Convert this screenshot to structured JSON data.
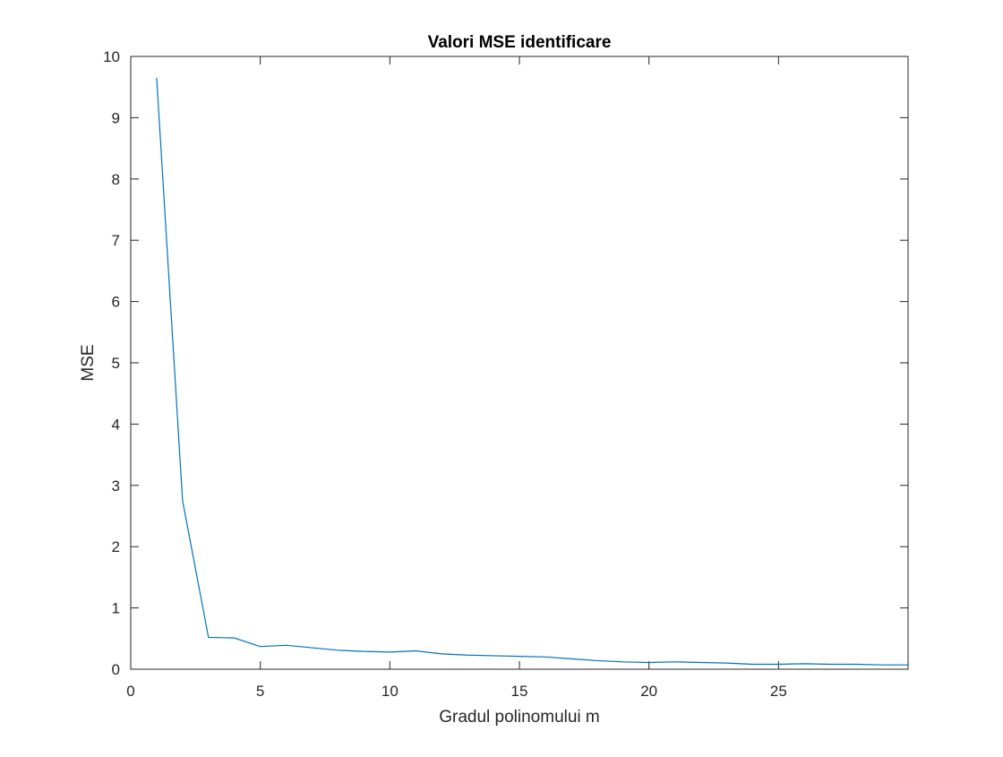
{
  "chart_data": {
    "type": "line",
    "title": "Valori MSE identificare",
    "xlabel": "Gradul polinomului m",
    "ylabel": "MSE",
    "xlim": [
      0,
      30
    ],
    "ylim": [
      0,
      10
    ],
    "xticks": [
      0,
      5,
      10,
      15,
      20,
      25
    ],
    "yticks": [
      0,
      1,
      2,
      3,
      4,
      5,
      6,
      7,
      8,
      9,
      10
    ],
    "grid": false,
    "box": true,
    "line_color": "#0072BD",
    "series": [
      {
        "x": [
          1,
          2,
          3,
          4,
          5,
          6,
          7,
          8,
          9,
          10,
          11,
          12,
          13,
          14,
          15,
          16,
          17,
          18,
          19,
          20,
          21,
          22,
          23,
          24,
          25,
          26,
          27,
          28,
          29,
          30
        ],
        "values": [
          9.65,
          2.75,
          0.52,
          0.51,
          0.37,
          0.39,
          0.35,
          0.31,
          0.29,
          0.28,
          0.3,
          0.25,
          0.23,
          0.22,
          0.21,
          0.2,
          0.17,
          0.14,
          0.12,
          0.11,
          0.12,
          0.11,
          0.1,
          0.08,
          0.08,
          0.09,
          0.08,
          0.08,
          0.07,
          0.07
        ]
      }
    ]
  }
}
